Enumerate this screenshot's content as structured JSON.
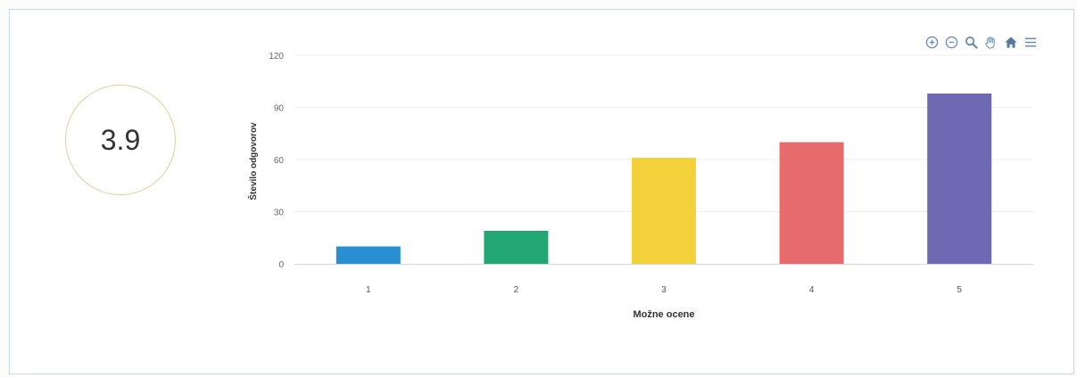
{
  "score": {
    "value": "3.9"
  },
  "toolbar": {
    "tools": [
      {
        "name": "zoom-in-icon"
      },
      {
        "name": "zoom-out-icon"
      },
      {
        "name": "magnifier-icon"
      },
      {
        "name": "pan-hand-icon"
      },
      {
        "name": "home-icon"
      },
      {
        "name": "menu-icon"
      }
    ],
    "icon_color": "#6a8bb0"
  },
  "chart_data": {
    "type": "bar",
    "categories": [
      "1",
      "2",
      "3",
      "4",
      "5"
    ],
    "values": [
      10,
      19,
      61,
      70,
      98
    ],
    "colors": [
      "#2a8fd0",
      "#23a772",
      "#f2d13a",
      "#e76a6d",
      "#6d6ab3"
    ],
    "title": "",
    "xlabel": "Možne ocene",
    "ylabel": "Število odgovorov",
    "ylim": [
      0,
      120
    ],
    "yticks": [
      0,
      30,
      60,
      90,
      120
    ],
    "grid": true,
    "legend": "none"
  }
}
